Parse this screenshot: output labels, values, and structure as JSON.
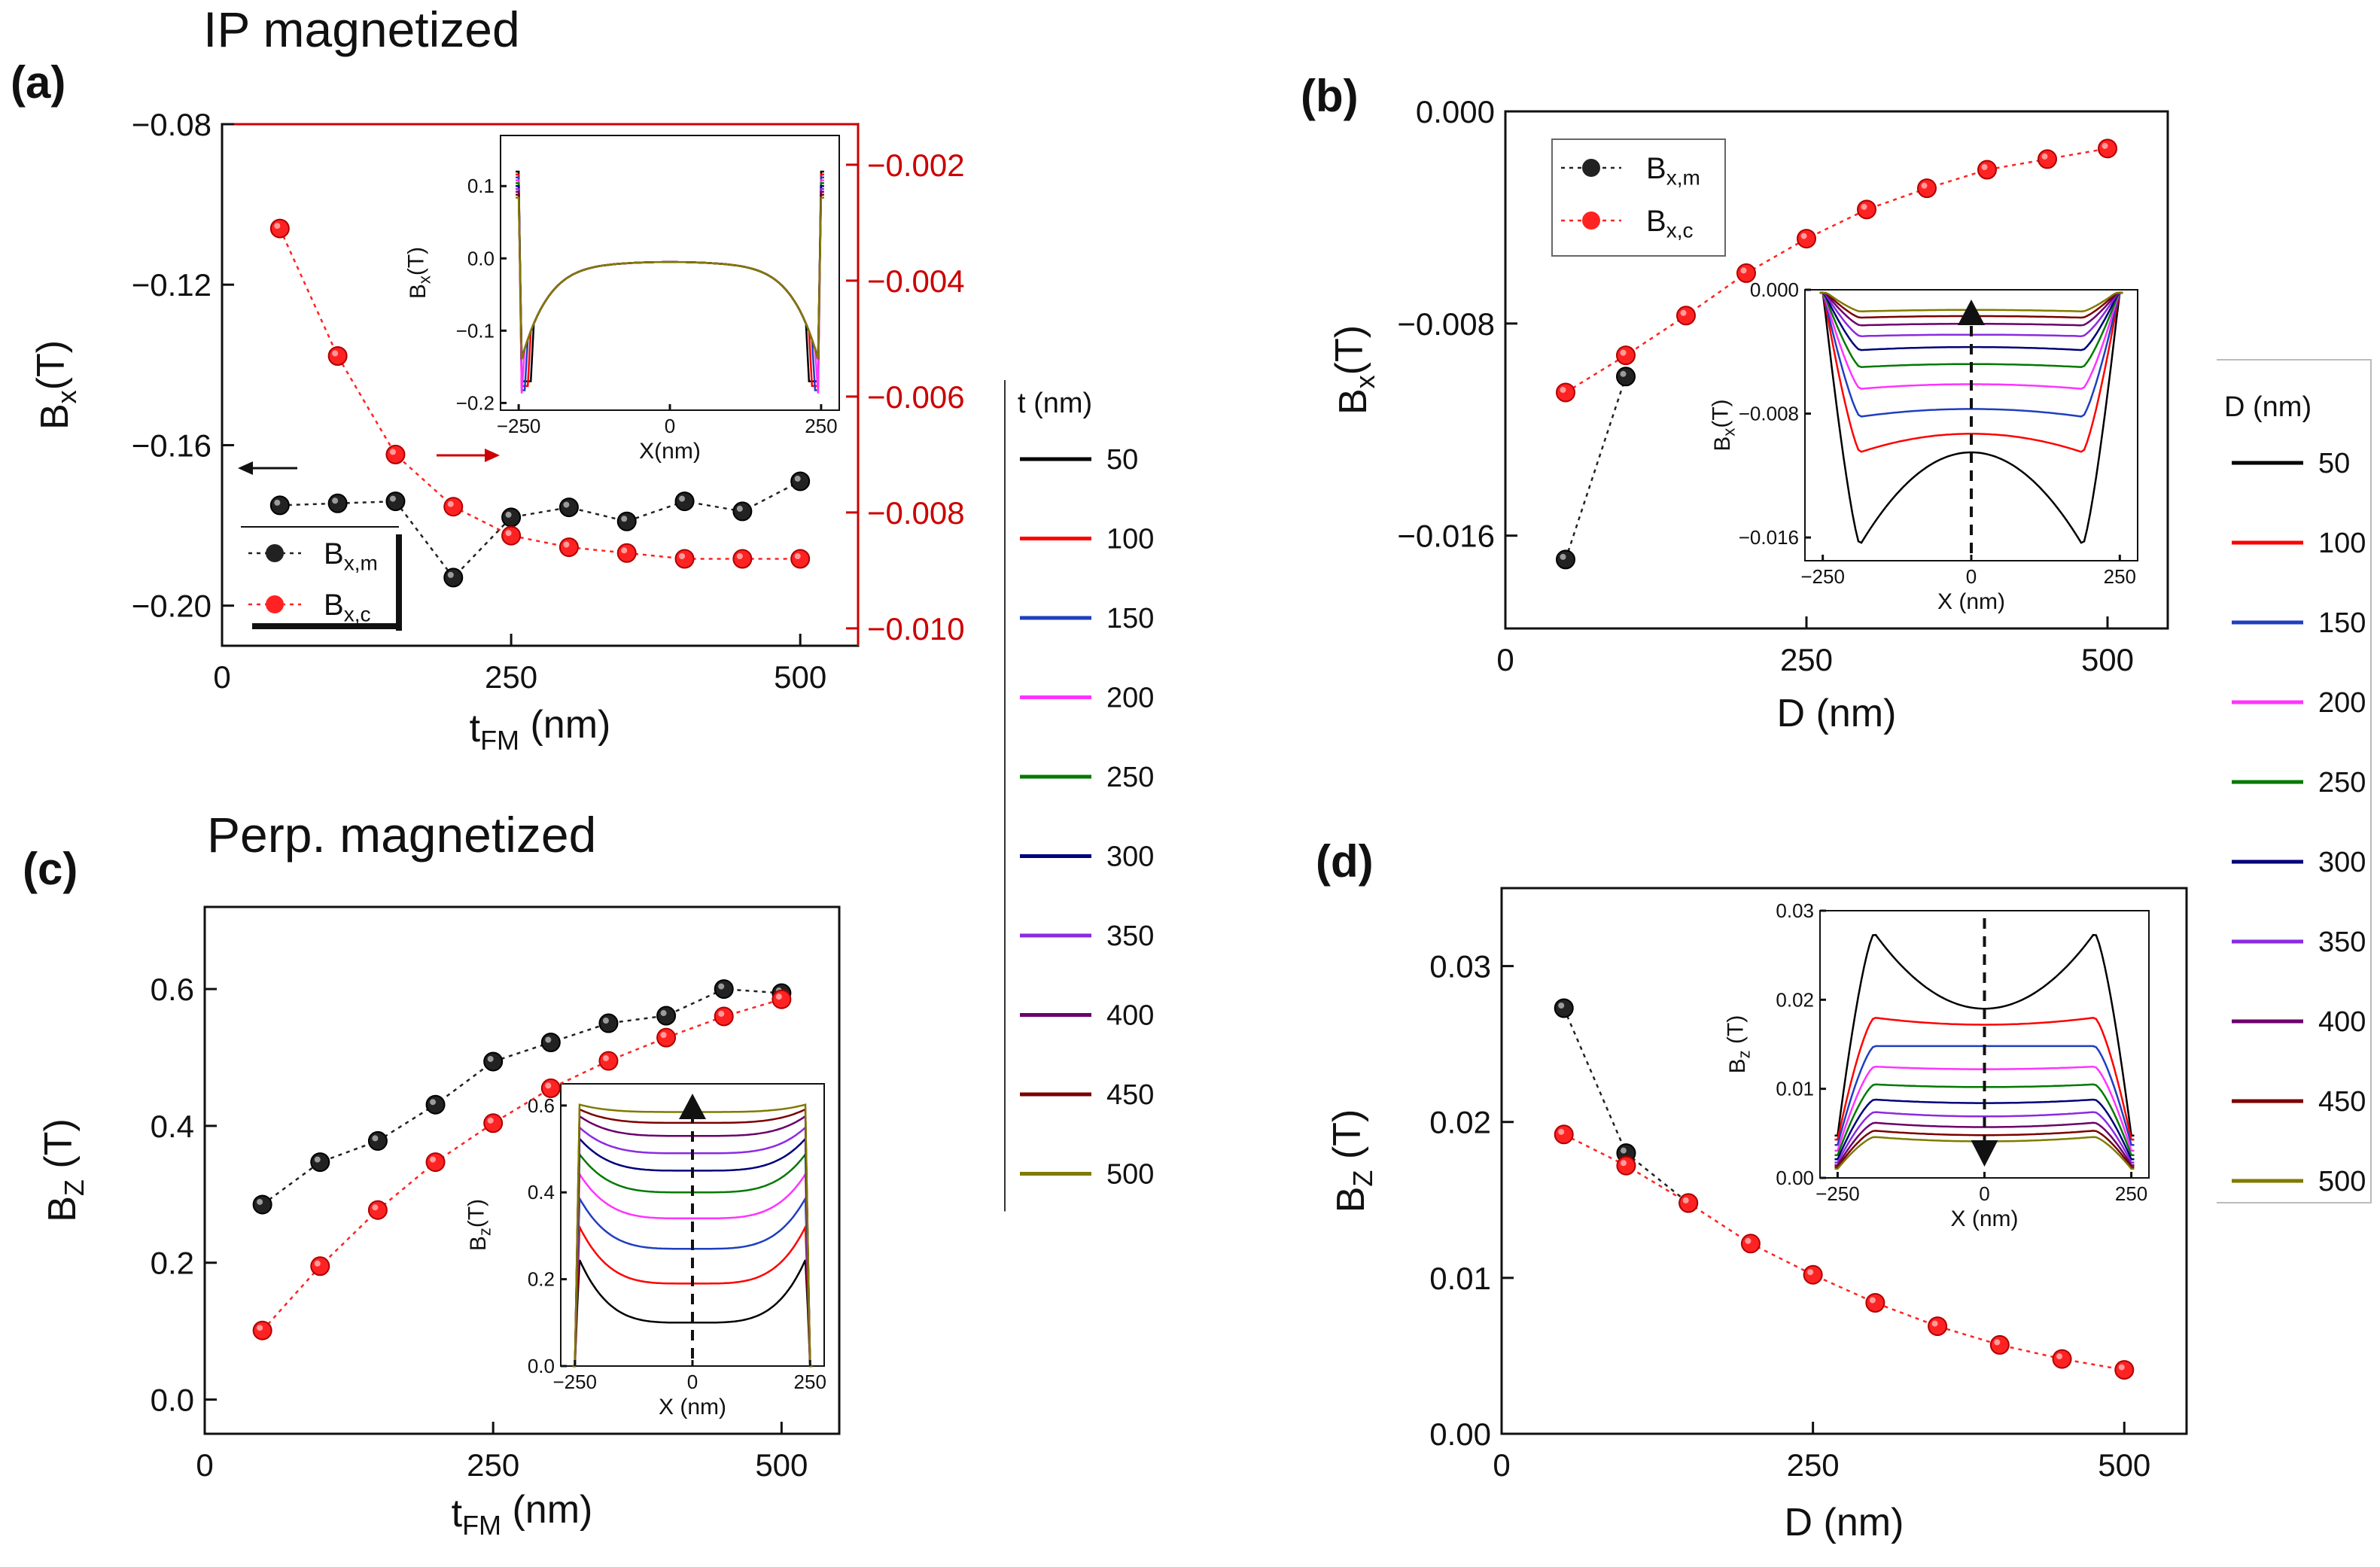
{
  "titles": {
    "ip": "IP magnetized",
    "perp": "Perp. magnetized"
  },
  "thickness_legend": {
    "title": "t (nm)",
    "entries": [
      "50",
      "100",
      "150",
      "200",
      "250",
      "300",
      "350",
      "400",
      "450",
      "500"
    ]
  },
  "diameter_legend": {
    "title": "D (nm)",
    "entries": [
      "50",
      "100",
      "150",
      "200",
      "250",
      "300",
      "350",
      "400",
      "450",
      "500"
    ]
  },
  "line_colors": [
    "#000000",
    "#ff0000",
    "#1f3fbf",
    "#ff33ff",
    "#007a00",
    "#00007a",
    "#8a2be2",
    "#6b006b",
    "#7a0000",
    "#807a00"
  ],
  "series_colors": {
    "m": "#222222",
    "c": "#ff2222",
    "right_axis": "#cc0000"
  },
  "chart_data": [
    {
      "id": "a",
      "type": "scatter",
      "panel_label": "(a)",
      "xlabel": "t",
      "xlabel_sub": "FM",
      "xlabel_unit": " (nm)",
      "ylabel": "B",
      "ylabel_sub": "x",
      "ylabel_unit": "(T)",
      "xlim": [
        0,
        550
      ],
      "ylim": [
        -0.21,
        -0.08
      ],
      "xticks": [
        0,
        250,
        500
      ],
      "xtick_labels": [
        "0",
        "250",
        "500"
      ],
      "yticks": [
        -0.2,
        -0.16,
        -0.12,
        -0.08
      ],
      "ytick_labels": [
        "-0.20",
        "-0.16",
        "-0.12",
        "-0.08"
      ],
      "y2lim": [
        -0.0103,
        -0.0013
      ],
      "y2ticks": [
        -0.01,
        -0.008,
        -0.006,
        -0.004,
        -0.002
      ],
      "y2tick_labels": [
        "-0.010",
        "-0.008",
        "-0.006",
        "-0.004",
        "-0.002"
      ],
      "x": [
        50,
        100,
        150,
        200,
        250,
        300,
        350,
        400,
        450,
        500
      ],
      "series": [
        {
          "name": "B",
          "sub": "x,m",
          "axis": "left",
          "values": [
            -0.175,
            -0.1745,
            -0.174,
            -0.193,
            -0.178,
            -0.1755,
            -0.179,
            -0.174,
            -0.1765,
            -0.169
          ]
        },
        {
          "name": "B",
          "sub": "x,c",
          "axis": "right",
          "values": [
            -0.0031,
            -0.0053,
            -0.007,
            -0.0079,
            -0.0084,
            -0.0086,
            -0.0087,
            -0.0088,
            -0.0088,
            -0.0088
          ]
        }
      ],
      "legend": {
        "placement": "bottom-left",
        "entries": [
          {
            "name": "B",
            "sub": "x,m"
          },
          {
            "name": "B",
            "sub": "x,c"
          }
        ]
      },
      "inset": {
        "xlabel": "X(nm)",
        "ylabel": "B",
        "ylabel_sub": "x",
        "ylabel_unit": "(T)",
        "xlim": [
          -280,
          280
        ],
        "ylim": [
          -0.21,
          0.17
        ],
        "xticks": [
          -250,
          0,
          250
        ],
        "xtick_labels": [
          "-250",
          "0",
          "250"
        ],
        "yticks": [
          -0.2,
          -0.1,
          0.0,
          0.1
        ],
        "ytick_labels": [
          "-0.2",
          "-0.1",
          "0.0",
          "0.1"
        ],
        "kind": "ip"
      }
    },
    {
      "id": "b",
      "type": "scatter",
      "panel_label": "(b)",
      "xlabel": "D",
      "xlabel_sub": "",
      "xlabel_unit": " (nm)",
      "ylabel": "B",
      "ylabel_sub": "x",
      "ylabel_unit": "(T)",
      "xlim": [
        0,
        550
      ],
      "ylim": [
        -0.0195,
        0.0
      ],
      "xticks": [
        0,
        250,
        500
      ],
      "xtick_labels": [
        "0",
        "250",
        "500"
      ],
      "yticks": [
        -0.016,
        -0.008,
        0.0
      ],
      "ytick_labels": [
        "-0.016",
        "-0.008",
        "0.000"
      ],
      "x": [
        50,
        100,
        150,
        200,
        250,
        300,
        350,
        400,
        450,
        500
      ],
      "series": [
        {
          "name": "B",
          "sub": "x,m",
          "axis": "left",
          "values": [
            -0.0169,
            -0.01,
            null,
            null,
            null,
            null,
            null,
            null,
            null,
            null
          ]
        },
        {
          "name": "B",
          "sub": "x,c",
          "axis": "left",
          "values": [
            -0.0106,
            -0.0092,
            -0.0077,
            -0.0061,
            -0.0048,
            -0.0037,
            -0.0029,
            -0.0022,
            -0.0018,
            -0.0014
          ]
        }
      ],
      "legend": {
        "placement": "top-left",
        "entries": [
          {
            "name": "B",
            "sub": "x,m"
          },
          {
            "name": "B",
            "sub": "x,c"
          }
        ]
      },
      "inset": {
        "xlabel": "X (nm)",
        "ylabel": "B",
        "ylabel_sub": "x",
        "ylabel_unit": "(T)",
        "xlim": [
          -280,
          280
        ],
        "ylim": [
          -0.0175,
          0.0
        ],
        "xticks": [
          -250,
          0,
          250
        ],
        "xtick_labels": [
          "-250",
          "0",
          "250"
        ],
        "yticks": [
          -0.016,
          -0.008,
          0.0
        ],
        "ytick_labels": [
          "-0.016",
          "-0.008",
          "0.000"
        ],
        "kind": "dx",
        "arrow": "up"
      }
    },
    {
      "id": "c",
      "type": "scatter",
      "panel_label": "(c)",
      "xlabel": "t",
      "xlabel_sub": "FM",
      "xlabel_unit": " (nm)",
      "ylabel": "B",
      "ylabel_sub": "Z",
      "ylabel_unit": " (T)",
      "xlim": [
        0,
        550
      ],
      "ylim": [
        -0.05,
        0.72
      ],
      "xticks": [
        0,
        250,
        500
      ],
      "xtick_labels": [
        "0",
        "250",
        "500"
      ],
      "yticks": [
        0.0,
        0.2,
        0.4,
        0.6
      ],
      "ytick_labels": [
        "0.0",
        "0.2",
        "0.4",
        "0.6"
      ],
      "x": [
        50,
        100,
        150,
        200,
        250,
        300,
        350,
        400,
        450,
        500
      ],
      "series": [
        {
          "name": "B",
          "sub": "z,m",
          "axis": "left",
          "values": [
            0.285,
            0.347,
            0.378,
            0.431,
            0.494,
            0.522,
            0.55,
            0.561,
            0.6,
            0.594
          ]
        },
        {
          "name": "B",
          "sub": "z,c",
          "axis": "left",
          "values": [
            0.101,
            0.195,
            0.277,
            0.347,
            0.404,
            0.455,
            0.495,
            0.529,
            0.56,
            0.585
          ]
        }
      ],
      "inset": {
        "xlabel": "X (nm)",
        "ylabel": "B",
        "ylabel_sub": "z",
        "ylabel_unit": "(T)",
        "xlim": [
          -280,
          280
        ],
        "ylim": [
          0.0,
          0.65
        ],
        "xticks": [
          -250,
          0,
          250
        ],
        "xtick_labels": [
          "-250",
          "0",
          "250"
        ],
        "yticks": [
          0.0,
          0.2,
          0.4,
          0.6
        ],
        "ytick_labels": [
          "0.0",
          "0.2",
          "0.4",
          "0.6"
        ],
        "kind": "perp",
        "arrow": "up"
      }
    },
    {
      "id": "d",
      "type": "scatter",
      "panel_label": "(d)",
      "xlabel": "D",
      "xlabel_sub": "",
      "xlabel_unit": " (nm)",
      "ylabel": "B",
      "ylabel_sub": "Z",
      "ylabel_unit": " (T)",
      "xlim": [
        0,
        550
      ],
      "ylim": [
        0.0,
        0.035
      ],
      "xticks": [
        0,
        250,
        500
      ],
      "xtick_labels": [
        "0",
        "250",
        "500"
      ],
      "yticks": [
        0.0,
        0.01,
        0.02,
        0.03
      ],
      "ytick_labels": [
        "0.00",
        "0.01",
        "0.02",
        "0.03"
      ],
      "x": [
        50,
        100,
        150,
        200,
        250,
        300,
        350,
        400,
        450,
        500
      ],
      "series": [
        {
          "name": "B",
          "sub": "z,m",
          "axis": "left",
          "values": [
            0.0273,
            0.018,
            0.0148,
            null,
            null,
            null,
            null,
            null,
            null,
            null
          ]
        },
        {
          "name": "B",
          "sub": "z,c",
          "axis": "left",
          "values": [
            0.0192,
            0.0172,
            0.0148,
            0.0122,
            0.0102,
            0.0084,
            0.0069,
            0.0057,
            0.0048,
            0.0041
          ]
        }
      ],
      "inset": {
        "xlabel": "X (nm)",
        "ylabel": "B",
        "ylabel_sub": "z",
        "ylabel_unit": " (T)",
        "xlim": [
          -280,
          280
        ],
        "ylim": [
          0.0,
          0.03
        ],
        "xticks": [
          -250,
          0,
          250
        ],
        "xtick_labels": [
          "-250",
          "0",
          "250"
        ],
        "yticks": [
          0.0,
          0.01,
          0.02,
          0.03
        ],
        "ytick_labels": [
          "0.00",
          "0.01",
          "0.02",
          "0.03"
        ],
        "kind": "dz",
        "arrow": "down"
      }
    }
  ]
}
